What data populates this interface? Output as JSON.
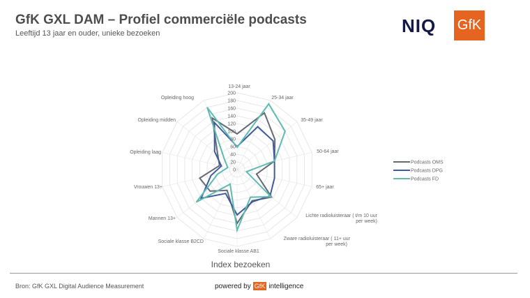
{
  "header": {
    "title": "GfK GXL DAM – Profiel commerciële podcasts",
    "subtitle": "Leeftijd 13 jaar en ouder, unieke bezoeken",
    "logo_niq": "NIQ",
    "logo_gfk": "GfK"
  },
  "footer": {
    "source": "Bron: GfK GXL Digital Audience Measurement",
    "powered_by": "powered by",
    "powered_logo": "GfK",
    "powered_suffix": "intelligence"
  },
  "chart_data": {
    "type": "radar",
    "title": "",
    "xlabel": "Index bezoeken",
    "categories": [
      "13-24 jaar",
      "25-34 jaar",
      "35-49 jaar",
      "50-64 jaar",
      "65+ jaar",
      "Lichte radioluisteraar ( t/m 10 uur per week)",
      "Zware radioluisteraar ( 11+ uur per week)",
      "Sociale klasse AB1",
      "Sociale klasse B2CD",
      "Mannen 13+",
      "Vrouwen 13+",
      "Opleiding laag",
      "Opleiding midden",
      "Opleiding hoog"
    ],
    "rlim": [
      0,
      200
    ],
    "ticks": [
      "0",
      "20",
      "40",
      "60",
      "80",
      "100",
      "120",
      "140",
      "160",
      "180",
      "200"
    ],
    "grid": true,
    "legend_position": "right",
    "series": [
      {
        "name": "Podcasts OMS",
        "color": "#636a72",
        "values": [
          93,
          164,
          126,
          100,
          52,
          115,
          90,
          140,
          60,
          90,
          100,
          47,
          65,
          149
        ]
      },
      {
        "name": "Podcasts DPG",
        "color": "#3f5b9c",
        "values": [
          60,
          124,
          120,
          100,
          100,
          110,
          93,
          118,
          69,
          120,
          70,
          42,
          75,
          136
        ]
      },
      {
        "name": "Podcasts FD",
        "color": "#5fbab2",
        "values": [
          58,
          190,
          160,
          100,
          25,
          113,
          80,
          158,
          42,
          136,
          52,
          25,
          42,
          180
        ]
      }
    ]
  }
}
